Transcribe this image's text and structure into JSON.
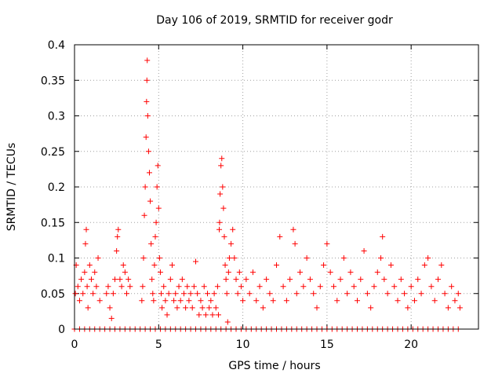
{
  "chart_data": {
    "type": "scatter",
    "title": "Day 106 of 2019, SRMTID for receiver godr",
    "xlabel": "GPS time / hours",
    "ylabel": "SRMTID / TECUs",
    "xlim": [
      0,
      24
    ],
    "ylim": [
      0,
      0.4
    ],
    "xticks": [
      0,
      5,
      10,
      15,
      20
    ],
    "xtick_labels": [
      "0",
      "5",
      "10",
      "15",
      "20"
    ],
    "yticks": [
      0,
      0.05,
      0.1,
      0.15,
      0.2,
      0.25,
      0.3,
      0.35,
      0.4
    ],
    "ytick_labels": [
      "0",
      "0.05",
      "0.1",
      "0.15",
      "0.2",
      "0.25",
      "0.3",
      "0.35",
      "0.4"
    ],
    "grid": true,
    "marker": "plus",
    "color": "#ff0000",
    "series": [
      {
        "name": "SRMTID",
        "points": [
          [
            0.05,
            0.05
          ],
          [
            0.1,
            0.09
          ],
          [
            0.2,
            0.06
          ],
          [
            0.3,
            0.04
          ],
          [
            0.4,
            0.07
          ],
          [
            0.5,
            0.05
          ],
          [
            0.6,
            0.08
          ],
          [
            0.65,
            0.12
          ],
          [
            0.7,
            0.14
          ],
          [
            0.75,
            0.06
          ],
          [
            0.8,
            0.03
          ],
          [
            0.9,
            0.09
          ],
          [
            1.0,
            0.07
          ],
          [
            1.1,
            0.05
          ],
          [
            1.2,
            0.08
          ],
          [
            1.3,
            0.06
          ],
          [
            1.4,
            0.1
          ],
          [
            1.5,
            0.04
          ],
          [
            1.9,
            0.05
          ],
          [
            2.0,
            0.06
          ],
          [
            2.1,
            0.03
          ],
          [
            2.2,
            0.015
          ],
          [
            2.3,
            0.05
          ],
          [
            2.4,
            0.07
          ],
          [
            2.5,
            0.11
          ],
          [
            2.55,
            0.13
          ],
          [
            2.6,
            0.14
          ],
          [
            2.7,
            0.07
          ],
          [
            2.8,
            0.06
          ],
          [
            2.9,
            0.09
          ],
          [
            3.0,
            0.08
          ],
          [
            3.1,
            0.05
          ],
          [
            3.2,
            0.07
          ],
          [
            3.3,
            0.06
          ],
          [
            4.0,
            0.04
          ],
          [
            4.05,
            0.06
          ],
          [
            4.1,
            0.1
          ],
          [
            4.15,
            0.16
          ],
          [
            4.2,
            0.2
          ],
          [
            4.25,
            0.27
          ],
          [
            4.28,
            0.32
          ],
          [
            4.3,
            0.35
          ],
          [
            4.32,
            0.378
          ],
          [
            4.35,
            0.3
          ],
          [
            4.4,
            0.25
          ],
          [
            4.45,
            0.22
          ],
          [
            4.5,
            0.18
          ],
          [
            4.55,
            0.12
          ],
          [
            4.6,
            0.07
          ],
          [
            4.65,
            0.05
          ],
          [
            4.7,
            0.04
          ],
          [
            4.75,
            0.09
          ],
          [
            4.8,
            0.13
          ],
          [
            4.85,
            0.15
          ],
          [
            4.9,
            0.2
          ],
          [
            4.95,
            0.23
          ],
          [
            5.0,
            0.17
          ],
          [
            5.05,
            0.1
          ],
          [
            5.1,
            0.08
          ],
          [
            5.15,
            0.05
          ],
          [
            5.2,
            0.03
          ],
          [
            5.3,
            0.06
          ],
          [
            5.4,
            0.04
          ],
          [
            5.5,
            0.02
          ],
          [
            5.6,
            0.05
          ],
          [
            5.7,
            0.07
          ],
          [
            5.8,
            0.09
          ],
          [
            5.9,
            0.04
          ],
          [
            6.0,
            0.05
          ],
          [
            6.1,
            0.03
          ],
          [
            6.2,
            0.06
          ],
          [
            6.3,
            0.04
          ],
          [
            6.4,
            0.07
          ],
          [
            6.5,
            0.05
          ],
          [
            6.6,
            0.03
          ],
          [
            6.7,
            0.06
          ],
          [
            6.8,
            0.04
          ],
          [
            6.9,
            0.05
          ],
          [
            7.0,
            0.03
          ],
          [
            7.1,
            0.06
          ],
          [
            7.2,
            0.095
          ],
          [
            7.3,
            0.05
          ],
          [
            7.4,
            0.02
          ],
          [
            7.5,
            0.04
          ],
          [
            7.6,
            0.03
          ],
          [
            7.7,
            0.06
          ],
          [
            7.8,
            0.02
          ],
          [
            7.9,
            0.05
          ],
          [
            8.0,
            0.03
          ],
          [
            8.1,
            0.04
          ],
          [
            8.2,
            0.02
          ],
          [
            8.3,
            0.05
          ],
          [
            8.4,
            0.03
          ],
          [
            8.5,
            0.06
          ],
          [
            8.55,
            0.02
          ],
          [
            8.6,
            0.14
          ],
          [
            8.62,
            0.15
          ],
          [
            8.65,
            0.19
          ],
          [
            8.7,
            0.23
          ],
          [
            8.75,
            0.24
          ],
          [
            8.8,
            0.2
          ],
          [
            8.85,
            0.17
          ],
          [
            8.9,
            0.13
          ],
          [
            8.95,
            0.09
          ],
          [
            9.0,
            0.07
          ],
          [
            9.05,
            0.05
          ],
          [
            9.1,
            0.01
          ],
          [
            9.15,
            0.08
          ],
          [
            9.2,
            0.1
          ],
          [
            9.3,
            0.12
          ],
          [
            9.4,
            0.14
          ],
          [
            9.5,
            0.1
          ],
          [
            9.6,
            0.07
          ],
          [
            9.7,
            0.05
          ],
          [
            9.8,
            0.08
          ],
          [
            9.9,
            0.06
          ],
          [
            10.0,
            0.04
          ],
          [
            10.2,
            0.07
          ],
          [
            10.4,
            0.05
          ],
          [
            10.6,
            0.08
          ],
          [
            10.8,
            0.04
          ],
          [
            11.0,
            0.06
          ],
          [
            11.2,
            0.03
          ],
          [
            11.4,
            0.07
          ],
          [
            11.6,
            0.05
          ],
          [
            11.8,
            0.04
          ],
          [
            12.0,
            0.09
          ],
          [
            12.2,
            0.13
          ],
          [
            12.4,
            0.06
          ],
          [
            12.6,
            0.04
          ],
          [
            12.8,
            0.07
          ],
          [
            13.0,
            0.14
          ],
          [
            13.1,
            0.12
          ],
          [
            13.2,
            0.05
          ],
          [
            13.4,
            0.08
          ],
          [
            13.6,
            0.06
          ],
          [
            13.8,
            0.1
          ],
          [
            14.0,
            0.07
          ],
          [
            14.2,
            0.05
          ],
          [
            14.4,
            0.03
          ],
          [
            14.6,
            0.06
          ],
          [
            14.8,
            0.09
          ],
          [
            15.0,
            0.12
          ],
          [
            15.2,
            0.08
          ],
          [
            15.4,
            0.06
          ],
          [
            15.6,
            0.04
          ],
          [
            15.8,
            0.07
          ],
          [
            16.0,
            0.1
          ],
          [
            16.2,
            0.05
          ],
          [
            16.4,
            0.08
          ],
          [
            16.6,
            0.06
          ],
          [
            16.8,
            0.04
          ],
          [
            17.0,
            0.07
          ],
          [
            17.2,
            0.11
          ],
          [
            17.4,
            0.05
          ],
          [
            17.6,
            0.03
          ],
          [
            17.8,
            0.06
          ],
          [
            18.0,
            0.08
          ],
          [
            18.2,
            0.1
          ],
          [
            18.3,
            0.13
          ],
          [
            18.4,
            0.07
          ],
          [
            18.6,
            0.05
          ],
          [
            18.8,
            0.09
          ],
          [
            19.0,
            0.06
          ],
          [
            19.2,
            0.04
          ],
          [
            19.4,
            0.07
          ],
          [
            19.6,
            0.05
          ],
          [
            19.8,
            0.03
          ],
          [
            20.0,
            0.06
          ],
          [
            20.2,
            0.04
          ],
          [
            20.4,
            0.07
          ],
          [
            20.6,
            0.05
          ],
          [
            20.8,
            0.09
          ],
          [
            21.0,
            0.1
          ],
          [
            21.2,
            0.06
          ],
          [
            21.4,
            0.04
          ],
          [
            21.6,
            0.07
          ],
          [
            21.8,
            0.09
          ],
          [
            22.0,
            0.05
          ],
          [
            22.2,
            0.03
          ],
          [
            22.4,
            0.06
          ],
          [
            22.6,
            0.04
          ],
          [
            22.8,
            0.05
          ],
          [
            22.9,
            0.03
          ]
        ]
      }
    ],
    "zero_points_x": [
      0.0,
      0.3,
      0.6,
      0.9,
      1.2,
      1.5,
      1.8,
      2.1,
      2.4,
      2.7,
      3.0,
      3.3,
      3.6,
      3.9,
      4.2,
      4.5,
      4.8,
      5.1,
      5.4,
      5.7,
      6.0,
      6.3,
      6.6,
      6.9,
      7.2,
      7.5,
      7.8,
      8.1,
      8.4,
      8.7,
      9.0,
      9.3,
      9.6,
      9.9,
      10.2,
      10.5,
      10.8,
      11.1,
      11.4,
      11.7,
      12.0,
      12.3,
      12.6,
      12.9,
      13.2,
      13.5,
      13.8,
      14.1,
      14.4,
      14.7,
      15.0,
      15.3,
      15.6,
      15.9,
      16.2,
      16.5,
      16.8,
      17.1,
      17.4,
      17.7,
      18.0,
      18.3,
      18.6,
      18.9,
      19.2,
      19.5,
      19.8,
      20.1,
      20.4,
      20.7,
      21.0,
      21.3,
      21.6,
      21.9,
      22.2,
      22.5,
      22.8
    ]
  }
}
